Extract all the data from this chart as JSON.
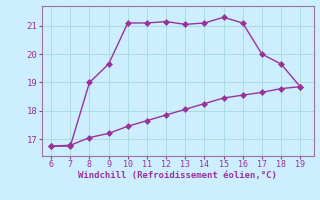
{
  "line1_x": [
    6,
    7,
    8,
    9,
    10,
    11,
    12,
    13,
    14,
    15,
    16,
    17,
    18,
    19
  ],
  "line1_y": [
    16.75,
    16.75,
    19.0,
    19.65,
    21.1,
    21.1,
    21.15,
    21.05,
    21.1,
    21.3,
    21.1,
    20.0,
    19.65,
    18.85
  ],
  "line2_x": [
    6,
    7,
    8,
    9,
    10,
    11,
    12,
    13,
    14,
    15,
    16,
    17,
    18,
    19
  ],
  "line2_y": [
    16.75,
    16.78,
    17.05,
    17.2,
    17.45,
    17.65,
    17.85,
    18.05,
    18.25,
    18.45,
    18.55,
    18.65,
    18.78,
    18.85
  ],
  "line_color": "#993399",
  "bg_color": "#cceeff",
  "grid_color": "#aadddd",
  "xlabel": "Windchill (Refroidissement éolien,°C)",
  "xlabel_color": "#993399",
  "tick_color": "#993399",
  "spine_color": "#997799",
  "xlim": [
    5.5,
    19.7
  ],
  "ylim": [
    16.4,
    21.7
  ],
  "xticks": [
    6,
    7,
    8,
    9,
    10,
    11,
    12,
    13,
    14,
    15,
    16,
    17,
    18,
    19
  ],
  "yticks": [
    17,
    18,
    19,
    20,
    21
  ],
  "markersize": 3,
  "linewidth": 1.0
}
